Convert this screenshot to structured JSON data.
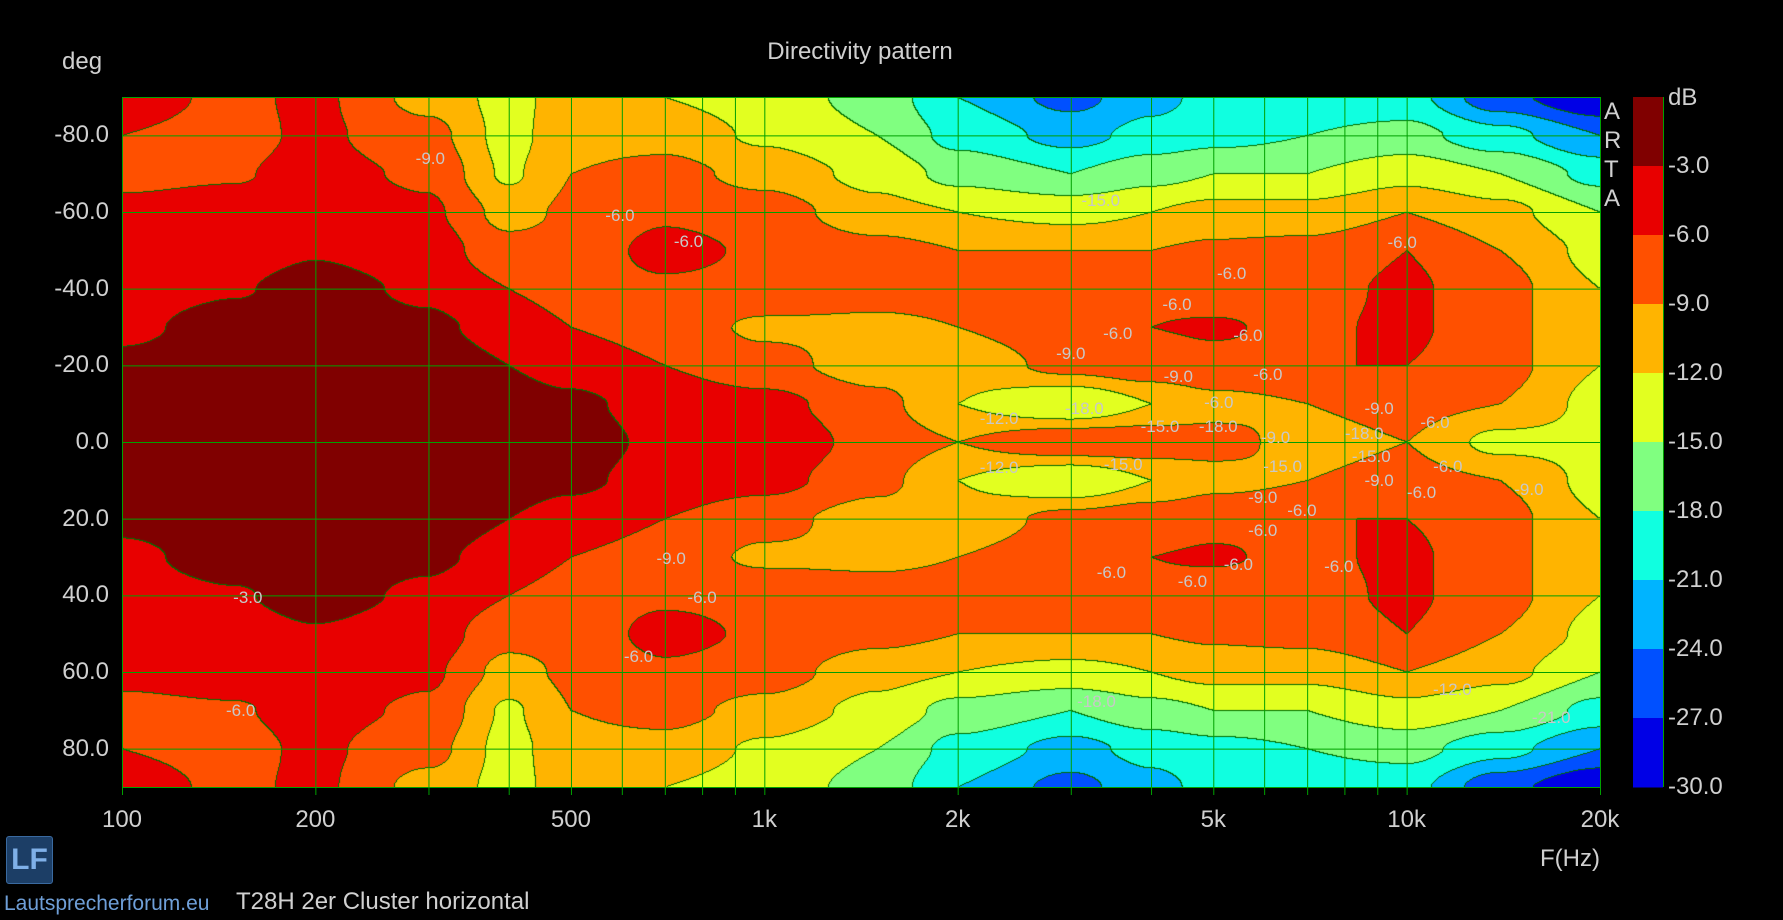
{
  "chart_data": {
    "type": "heatmap",
    "title": "Directivity pattern",
    "ylabel": "deg",
    "xlabel": "F(Hz)",
    "caption": "T28H 2er Cluster horizontal",
    "x_scale": "log",
    "xlim": [
      100,
      20000
    ],
    "ylim": [
      -90,
      90
    ],
    "y_inverted": true,
    "grid": true,
    "x_ticks": [
      {
        "v": 100,
        "label": "100"
      },
      {
        "v": 200,
        "label": "200"
      },
      {
        "v": 500,
        "label": "500"
      },
      {
        "v": 1000,
        "label": "1k"
      },
      {
        "v": 2000,
        "label": "2k"
      },
      {
        "v": 5000,
        "label": "5k"
      },
      {
        "v": 10000,
        "label": "10k"
      },
      {
        "v": 20000,
        "label": "20k"
      }
    ],
    "y_ticks": [
      {
        "v": -80,
        "label": "-80.0"
      },
      {
        "v": -60,
        "label": "-60.0"
      },
      {
        "v": -40,
        "label": "-40.0"
      },
      {
        "v": -20,
        "label": "-20.0"
      },
      {
        "v": 0,
        "label": "0.0"
      },
      {
        "v": 20,
        "label": "20.0"
      },
      {
        "v": 40,
        "label": "40.0"
      },
      {
        "v": 60,
        "label": "60.0"
      },
      {
        "v": 80,
        "label": "80.0"
      }
    ],
    "colorbar": {
      "unit": "dB",
      "levels": [
        "-3.0",
        "-6.0",
        "-9.0",
        "-12.0",
        "-15.0",
        "-18.0",
        "-21.0",
        "-24.0",
        "-27.0",
        "-30.0"
      ],
      "colors": [
        "#800000",
        "#e80000",
        "#ff5000",
        "#ffb400",
        "#e2ff20",
        "#80ff80",
        "#10ffe0",
        "#00b4ff",
        "#0050ff",
        "#0000e6",
        "#000090"
      ]
    },
    "frequencies": [
      100,
      150,
      200,
      300,
      400,
      500,
      700,
      1000,
      1500,
      2000,
      3000,
      4000,
      5000,
      7000,
      10000,
      14000,
      20000
    ],
    "angles": [
      -90,
      -80,
      -70,
      -60,
      -50,
      -40,
      -30,
      -20,
      -10,
      0,
      10,
      20,
      30,
      40,
      50,
      60,
      70,
      80,
      90
    ],
    "values_db": [
      [
        -5,
        -6.5,
        -5.5,
        -10,
        -13,
        -10.5,
        -12,
        -13.5,
        -16,
        -21,
        -25,
        -22,
        -20,
        -20,
        -20,
        -26,
        -30
      ],
      [
        -6,
        -6.8,
        -5.5,
        -8,
        -13,
        -10,
        -10,
        -12.5,
        -15,
        -19,
        -22,
        -20,
        -19,
        -18,
        -17,
        -20,
        -24
      ],
      [
        -6.5,
        -6.2,
        -5,
        -6.5,
        -12.5,
        -9,
        -8,
        -10,
        -13,
        -16,
        -18,
        -16,
        -15,
        -15,
        -13,
        -15,
        -19
      ],
      [
        -5.5,
        -5,
        -4,
        -5.5,
        -10,
        -8.5,
        -6.5,
        -7.5,
        -11,
        -12,
        -13,
        -12,
        -11,
        -11,
        -9,
        -11,
        -15
      ],
      [
        -4.5,
        -4,
        -3.2,
        -4.5,
        -8,
        -8,
        -5,
        -6.5,
        -8,
        -9,
        -9,
        -9,
        -8.5,
        -8,
        -6,
        -9,
        -13
      ],
      [
        -4,
        -3.2,
        -2,
        -3.5,
        -6,
        -7.5,
        -6.5,
        -7,
        -8,
        -8,
        -7.5,
        -6.5,
        -7,
        -7,
        -5.5,
        -8,
        -12
      ],
      [
        -3.5,
        -2,
        -1.5,
        -2.5,
        -4,
        -6,
        -7.5,
        -9.5,
        -9.5,
        -9,
        -7,
        -6,
        -5.8,
        -6.5,
        -5.5,
        -8,
        -12
      ],
      [
        -2.5,
        -1.5,
        -1,
        -1.5,
        -3,
        -4,
        -6,
        -8,
        -10.5,
        -11,
        -8,
        -7,
        -6.5,
        -6,
        -6,
        -8,
        -12
      ],
      [
        -2,
        -1,
        -1,
        -1,
        -2,
        -2.5,
        -4,
        -5,
        -8,
        -12,
        -15,
        -12,
        -10,
        -9,
        -8,
        -9,
        -13
      ],
      [
        -2,
        -1,
        -1,
        -1,
        -1.5,
        -2,
        -3.5,
        -4,
        -7,
        -9,
        -6.5,
        -7,
        -8,
        -10,
        -9,
        -13,
        -13
      ],
      [
        -2,
        -1,
        -1,
        -1,
        -2,
        -2.5,
        -4,
        -5,
        -8,
        -12,
        -15,
        -12,
        -10,
        -9,
        -8,
        -9,
        -13
      ],
      [
        -2.5,
        -1.5,
        -1,
        -1.5,
        -3,
        -4,
        -6,
        -8,
        -10.5,
        -11,
        -8,
        -7,
        -6.5,
        -6,
        -6,
        -8,
        -12
      ],
      [
        -3.5,
        -2,
        -1.5,
        -2.5,
        -4,
        -6,
        -7.5,
        -9.5,
        -9.5,
        -9,
        -7,
        -6,
        -5.8,
        -6.5,
        -5.5,
        -8,
        -12
      ],
      [
        -4,
        -3.2,
        -2,
        -3.5,
        -6,
        -7.5,
        -6.5,
        -7,
        -8,
        -8,
        -7.5,
        -6.5,
        -7,
        -7,
        -5.5,
        -8,
        -12
      ],
      [
        -4.5,
        -4,
        -3.2,
        -4.5,
        -8,
        -8,
        -5,
        -6.5,
        -8,
        -9,
        -9,
        -9,
        -8.5,
        -8,
        -6,
        -9,
        -13
      ],
      [
        -5.5,
        -5,
        -4,
        -5.5,
        -10,
        -8.5,
        -6.5,
        -7.5,
        -11,
        -12,
        -13,
        -12,
        -11,
        -11,
        -9,
        -11,
        -15
      ],
      [
        -6.5,
        -6.2,
        -5,
        -6.5,
        -12.5,
        -9,
        -8,
        -10,
        -13,
        -16,
        -18,
        -16,
        -15,
        -15,
        -13,
        -15,
        -19
      ],
      [
        -6,
        -6.8,
        -5.5,
        -8,
        -13,
        -10,
        -10,
        -12.5,
        -15,
        -19,
        -22,
        -20,
        -19,
        -18,
        -17,
        -20,
        -24
      ],
      [
        -5,
        -6.5,
        -5.5,
        -10,
        -13,
        -10.5,
        -12,
        -13.5,
        -16,
        -21,
        -25,
        -22,
        -20,
        -20,
        -20,
        -26,
        -30
      ]
    ],
    "contour_labels": [
      {
        "text": "-9.0",
        "f": 302,
        "a": -73.7
      },
      {
        "text": "-6.0",
        "f": 596,
        "a": -58.9
      },
      {
        "text": "-6.0",
        "f": 762,
        "a": -52.3
      },
      {
        "text": "-15.0",
        "f": 3340,
        "a": -63
      },
      {
        "text": "-6.0",
        "f": 9840,
        "a": -51.8
      },
      {
        "text": "-6.0",
        "f": 5340,
        "a": -43.7
      },
      {
        "text": "-6.0",
        "f": 4390,
        "a": -35.7
      },
      {
        "text": "-6.0",
        "f": 3550,
        "a": -28.3
      },
      {
        "text": "-6.0",
        "f": 5660,
        "a": -27.7
      },
      {
        "text": "-9.0",
        "f": 3000,
        "a": -23
      },
      {
        "text": "-9.0",
        "f": 4410,
        "a": -17
      },
      {
        "text": "-6.0",
        "f": 6080,
        "a": -17.4
      },
      {
        "text": "-6.0",
        "f": 5100,
        "a": -10.2
      },
      {
        "text": "-9.0",
        "f": 9060,
        "a": -8.5
      },
      {
        "text": "-12.0",
        "f": 2320,
        "a": -6.1
      },
      {
        "text": "-18.0",
        "f": 3150,
        "a": -8.5
      },
      {
        "text": "-15.0",
        "f": 4130,
        "a": -4
      },
      {
        "text": "-18.0",
        "f": 5090,
        "a": -4
      },
      {
        "text": "-9.0",
        "f": 6250,
        "a": -1
      },
      {
        "text": "-18.0",
        "f": 8590,
        "a": -2.2
      },
      {
        "text": "-6.0",
        "f": 11070,
        "a": -4.9
      },
      {
        "text": "-12.0",
        "f": 2320,
        "a": 6.7
      },
      {
        "text": "-15.0",
        "f": 3620,
        "a": 6.1
      },
      {
        "text": "-15.0",
        "f": 6410,
        "a": 6.4
      },
      {
        "text": "-15.0",
        "f": 8810,
        "a": 4
      },
      {
        "text": "-6.0",
        "f": 11590,
        "a": 6.4
      },
      {
        "text": "-9.0",
        "f": 9060,
        "a": 10.2
      },
      {
        "text": "-6.0",
        "f": 10550,
        "a": 13.2
      },
      {
        "text": "-9.0",
        "f": 15500,
        "a": 12.6
      },
      {
        "text": "-9.0",
        "f": 5970,
        "a": 14.7
      },
      {
        "text": "-6.0",
        "f": 6870,
        "a": 17.9
      },
      {
        "text": "-6.0",
        "f": 5970,
        "a": 23.3
      },
      {
        "text": "-9.0",
        "f": 716,
        "a": 30.4
      },
      {
        "text": "-6.0",
        "f": 3470,
        "a": 34.2
      },
      {
        "text": "-6.0",
        "f": 5470,
        "a": 32.2
      },
      {
        "text": "-6.0",
        "f": 7840,
        "a": 32.5
      },
      {
        "text": "-6.0",
        "f": 4640,
        "a": 36.6
      },
      {
        "text": "-3.0",
        "f": 157,
        "a": 40.8
      },
      {
        "text": "-6.0",
        "f": 800,
        "a": 40.8
      },
      {
        "text": "-6.0",
        "f": 637,
        "a": 56.2
      },
      {
        "text": "-12.0",
        "f": 11780,
        "a": 64.8
      },
      {
        "text": "-18.0",
        "f": 3290,
        "a": 67.7
      },
      {
        "text": "-21.0",
        "f": 16790,
        "a": 71.9
      },
      {
        "text": "-6.0",
        "f": 153,
        "a": 70.1
      }
    ]
  },
  "software_mark": [
    "A",
    "R",
    "T",
    "A"
  ],
  "logo": {
    "text": "LF",
    "watermark": "Lautsprecherforum.eu"
  }
}
